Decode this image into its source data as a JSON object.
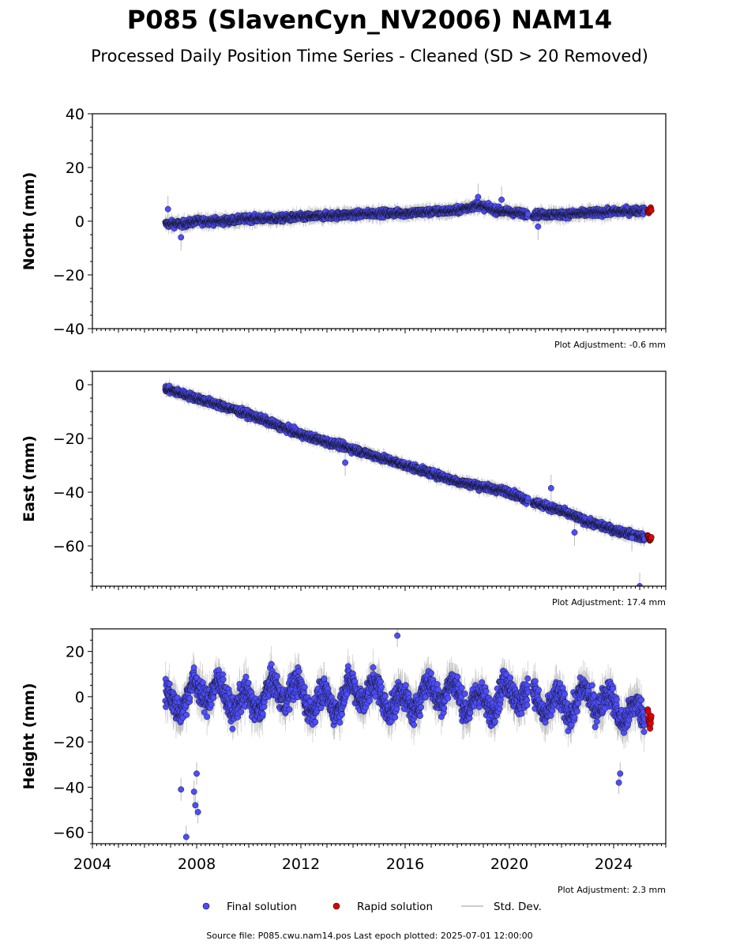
{
  "title": "P085 (SlavenCyn_NV2006) NAM14",
  "subtitle": "Processed Daily Position Time Series - Cleaned (SD > 20 Removed)",
  "source_note": "Source file: P085.cwu.nam14.pos  Last epoch plotted: 2025-07-01 12:00:00",
  "legend": {
    "final": "Final solution",
    "rapid": "Rapid solution",
    "std": "Std. Dev."
  },
  "colors": {
    "final": "#4d4dff",
    "rapid": "#e00000",
    "std": "#bbbbbb",
    "marker_edge": "#111111"
  },
  "chart_data": [
    {
      "type": "scatter",
      "ylabel": "North (mm)",
      "ylim": [
        -40,
        40
      ],
      "yticks": [
        -40,
        -20,
        0,
        20,
        40
      ],
      "xlim": [
        2004,
        2026
      ],
      "adjustment": "Plot Adjustment: -0.6 mm",
      "series": [
        {
          "name": "Final solution",
          "x": [
            2006.8,
            2007.5,
            2008.0,
            2009.0,
            2010.0,
            2011.0,
            2012.0,
            2013.0,
            2014.0,
            2015.0,
            2016.0,
            2017.0,
            2018.0,
            2018.8,
            2019.5,
            2020.4,
            2020.9,
            2022.0,
            2023.0,
            2024.0,
            2025.2
          ],
          "y": [
            -1,
            -1,
            0,
            0,
            1,
            1,
            1.5,
            2,
            2.5,
            3,
            3,
            3.5,
            4,
            6,
            4,
            3,
            2.5,
            2.5,
            3,
            3.5,
            4
          ]
        },
        {
          "name": "Rapid solution",
          "x": [
            2025.3,
            2025.35,
            2025.4,
            2025.45
          ],
          "y": [
            4,
            3,
            5,
            4
          ]
        }
      ],
      "outliers": [
        {
          "x": 2006.9,
          "y": 4.5
        },
        {
          "x": 2007.4,
          "y": -6
        },
        {
          "x": 2018.8,
          "y": 9
        },
        {
          "x": 2019.7,
          "y": 8
        },
        {
          "x": 2021.1,
          "y": -2
        }
      ]
    },
    {
      "type": "scatter",
      "ylabel": "East (mm)",
      "ylim": [
        -75,
        5
      ],
      "yticks": [
        -60,
        -40,
        -20,
        0
      ],
      "xlim": [
        2004,
        2026
      ],
      "adjustment": "Plot Adjustment: 17.4 mm",
      "series": [
        {
          "name": "Final solution",
          "x": [
            2006.8,
            2008.0,
            2010.0,
            2012.0,
            2014.0,
            2016.0,
            2018.0,
            2020.0,
            2020.7,
            2021.0,
            2022.0,
            2023.0,
            2024.0,
            2025.2
          ],
          "y": [
            -1.5,
            -5,
            -11,
            -18.5,
            -24,
            -30,
            -36,
            -40,
            -43,
            -44,
            -47,
            -51,
            -54,
            -57
          ]
        },
        {
          "name": "Rapid solution",
          "x": [
            2025.3,
            2025.35,
            2025.4,
            2025.45
          ],
          "y": [
            -56,
            -57,
            -58,
            -56.5
          ]
        }
      ],
      "outliers": [
        {
          "x": 2013.7,
          "y": -29
        },
        {
          "x": 2021.6,
          "y": -38.5
        },
        {
          "x": 2022.5,
          "y": -55
        },
        {
          "x": 2024.7,
          "y": -57
        },
        {
          "x": 2025.0,
          "y": -75
        }
      ]
    },
    {
      "type": "scatter",
      "ylabel": "Height (mm)",
      "ylim": [
        -65,
        30
      ],
      "yticks": [
        -60,
        -40,
        -20,
        0,
        20
      ],
      "xlim": [
        2004,
        2026
      ],
      "xticks": [
        2004,
        2008,
        2012,
        2016,
        2020,
        2024
      ],
      "adjustment": "Plot Adjustment: 2.3 mm",
      "series": [
        {
          "name": "Final solution",
          "x": [
            2006.8,
            2008.0,
            2010.0,
            2012.0,
            2014.0,
            2016.0,
            2018.0,
            2020.0,
            2020.9,
            2022.0,
            2024.0,
            2025.2
          ],
          "y": [
            0,
            0,
            0,
            0,
            0,
            0,
            0,
            0,
            -2,
            -1,
            -5,
            -5
          ]
        },
        {
          "name": "Rapid solution",
          "x": [
            2025.3,
            2025.35,
            2025.4,
            2025.45
          ],
          "y": [
            -5,
            -10,
            -13,
            -8
          ]
        }
      ],
      "outliers": [
        {
          "x": 2007.4,
          "y": -41
        },
        {
          "x": 2007.6,
          "y": -62
        },
        {
          "x": 2007.9,
          "y": -42
        },
        {
          "x": 2007.95,
          "y": -48
        },
        {
          "x": 2008.0,
          "y": -34
        },
        {
          "x": 2008.05,
          "y": -51
        },
        {
          "x": 2015.7,
          "y": 27
        },
        {
          "x": 2024.2,
          "y": -38
        },
        {
          "x": 2024.25,
          "y": -34
        }
      ]
    }
  ]
}
